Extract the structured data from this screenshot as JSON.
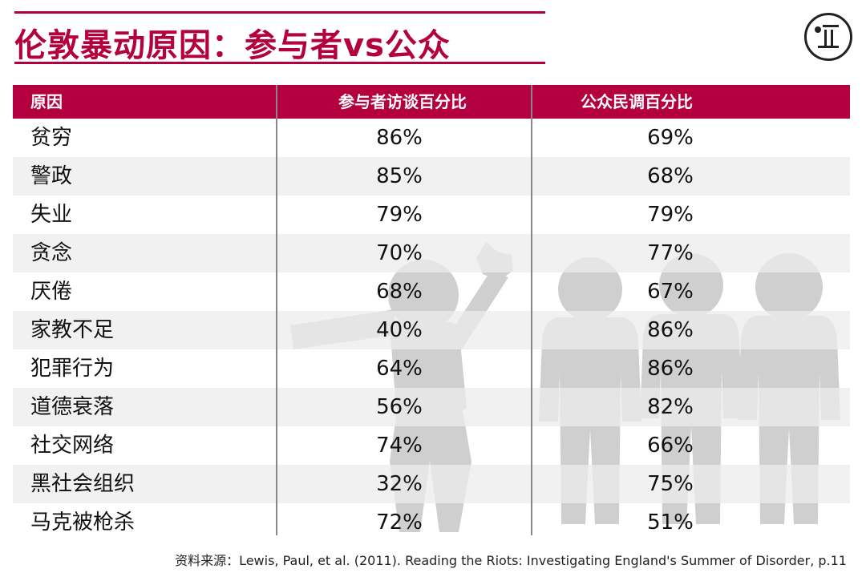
{
  "title": "伦敦暴动原因：参与者vs公众",
  "colors": {
    "accent": "#b4003e",
    "figure": "#cfcfcf"
  },
  "chart_data": {
    "type": "table",
    "columns": [
      "原因",
      "参与者访谈百分比",
      "公众民调百分比"
    ],
    "rows": [
      {
        "reason": "贫穷",
        "participants": "86%",
        "public": "69%"
      },
      {
        "reason": "警政",
        "participants": "85%",
        "public": "68%"
      },
      {
        "reason": "失业",
        "participants": "79%",
        "public": "79%"
      },
      {
        "reason": "贪念",
        "participants": "70%",
        "public": "77%"
      },
      {
        "reason": "厌倦",
        "participants": "68%",
        "public": "67%"
      },
      {
        "reason": "家教不足",
        "participants": "40%",
        "public": "86%"
      },
      {
        "reason": "犯罪行为",
        "participants": "64%",
        "public": "86%"
      },
      {
        "reason": "道德衰落",
        "participants": "56%",
        "public": "82%"
      },
      {
        "reason": "社交网络",
        "participants": "74%",
        "public": "66%"
      },
      {
        "reason": "黑社会组织",
        "participants": "32%",
        "public": "75%"
      },
      {
        "reason": "马克被枪杀",
        "participants": "72%",
        "public": "51%"
      }
    ]
  },
  "source": "资料来源：Lewis, Paul, et al. (2011). Reading the Riots: Investigating England's Summer of Disorder, p.11",
  "icons": {
    "logo": "publisher-logo-icon",
    "rioter": "rioter-figure-icon",
    "crowd": "crowd-figures-icon"
  }
}
